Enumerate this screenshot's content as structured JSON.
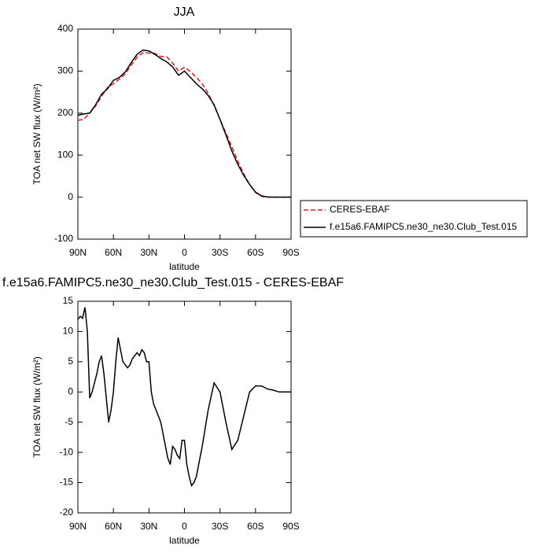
{
  "chart_data": [
    {
      "type": "line",
      "title": "JJA",
      "xlabel": "latitude",
      "ylabel": "TOA net SW flux (W/m²)",
      "x": [
        90,
        85,
        80,
        75,
        70,
        65,
        60,
        55,
        50,
        45,
        40,
        35,
        30,
        25,
        20,
        15,
        10,
        5,
        0,
        -5,
        -10,
        -15,
        -20,
        -25,
        -30,
        -35,
        -40,
        -45,
        -50,
        -55,
        -60,
        -65,
        -70,
        -75,
        -80,
        -85,
        -90
      ],
      "xlim": [
        90,
        -90
      ],
      "xticks": [
        {
          "value": 90,
          "label": "90N"
        },
        {
          "value": 60,
          "label": "60N"
        },
        {
          "value": 30,
          "label": "30N"
        },
        0,
        {
          "value": -30,
          "label": "30S"
        },
        {
          "value": -60,
          "label": "60S"
        },
        {
          "value": -90,
          "label": "90S"
        }
      ],
      "ylim": [
        -100,
        400
      ],
      "yticks": [
        -100,
        0,
        100,
        200,
        300,
        400
      ],
      "legend": "right",
      "series": [
        {
          "name": "CERES-EBAF",
          "color": "#e3171b",
          "dashed": true,
          "values": [
            183,
            185,
            200,
            217,
            240,
            261,
            270,
            281,
            293,
            314,
            333,
            344,
            343,
            342,
            335,
            334,
            319,
            300,
            309,
            299,
            285,
            270,
            247,
            218,
            185,
            153,
            120,
            86,
            56,
            30,
            11,
            2,
            0,
            0,
            0,
            0,
            0
          ]
        },
        {
          "name": "f.e15a6.FAMIPC5.ne30_ne30.Club_Test.015",
          "color": "#000000",
          "dashed": false,
          "values": [
            195,
            198,
            200,
            220,
            245,
            258,
            278,
            285,
            298,
            320,
            340,
            350,
            348,
            340,
            330,
            322,
            310,
            290,
            300,
            285,
            270,
            258,
            242,
            220,
            185,
            148,
            110,
            78,
            52,
            30,
            12,
            3,
            0.5,
            0,
            0,
            0,
            0
          ]
        }
      ]
    },
    {
      "type": "line",
      "title": "f.e15a6.FAMIPC5.ne30_ne30.Club_Test.015 - CERES-EBAF",
      "xlabel": "latitude",
      "ylabel": "TOA net SW flux (W/m²)",
      "x": [
        90,
        88,
        86,
        84,
        82,
        80,
        78,
        76,
        74,
        72,
        70,
        68,
        66,
        64,
        62,
        60,
        58,
        56,
        54,
        52,
        50,
        48,
        46,
        44,
        42,
        40,
        38,
        36,
        34,
        32,
        30,
        28,
        26,
        24,
        22,
        20,
        18,
        16,
        14,
        12,
        10,
        8,
        6,
        4,
        2,
        0,
        -2,
        -4,
        -6,
        -8,
        -10,
        -15,
        -20,
        -25,
        -30,
        -35,
        -40,
        -45,
        -50,
        -55,
        -60,
        -65,
        -70,
        -75,
        -80,
        -85,
        -90
      ],
      "xlim": [
        90,
        -90
      ],
      "xticks": [
        {
          "value": 90,
          "label": "90N"
        },
        {
          "value": 60,
          "label": "60N"
        },
        {
          "value": 30,
          "label": "30N"
        },
        0,
        {
          "value": -30,
          "label": "30S"
        },
        {
          "value": -60,
          "label": "60S"
        },
        {
          "value": -90,
          "label": "90S"
        }
      ],
      "ylim": [
        -20,
        15
      ],
      "yticks": [
        -20,
        -15,
        -10,
        -5,
        0,
        5,
        10,
        15
      ],
      "color": "#000000",
      "values": [
        12,
        12.5,
        12.2,
        14,
        10,
        -1,
        0,
        1.5,
        3,
        5,
        6,
        3,
        -1,
        -5,
        -3,
        0,
        5,
        9,
        7,
        5,
        4.5,
        4,
        4.5,
        5.5,
        6,
        6.5,
        6,
        7,
        6.5,
        5,
        5,
        0,
        -2,
        -3,
        -4,
        -5,
        -7,
        -9,
        -11,
        -12,
        -9,
        -9.5,
        -10.5,
        -11,
        -8,
        -8,
        -12,
        -14,
        -15.5,
        -15,
        -14,
        -9,
        -3,
        1.5,
        0,
        -5,
        -9.5,
        -8,
        -4,
        0,
        1,
        1,
        0.5,
        0.3,
        0,
        0,
        0
      ]
    }
  ]
}
